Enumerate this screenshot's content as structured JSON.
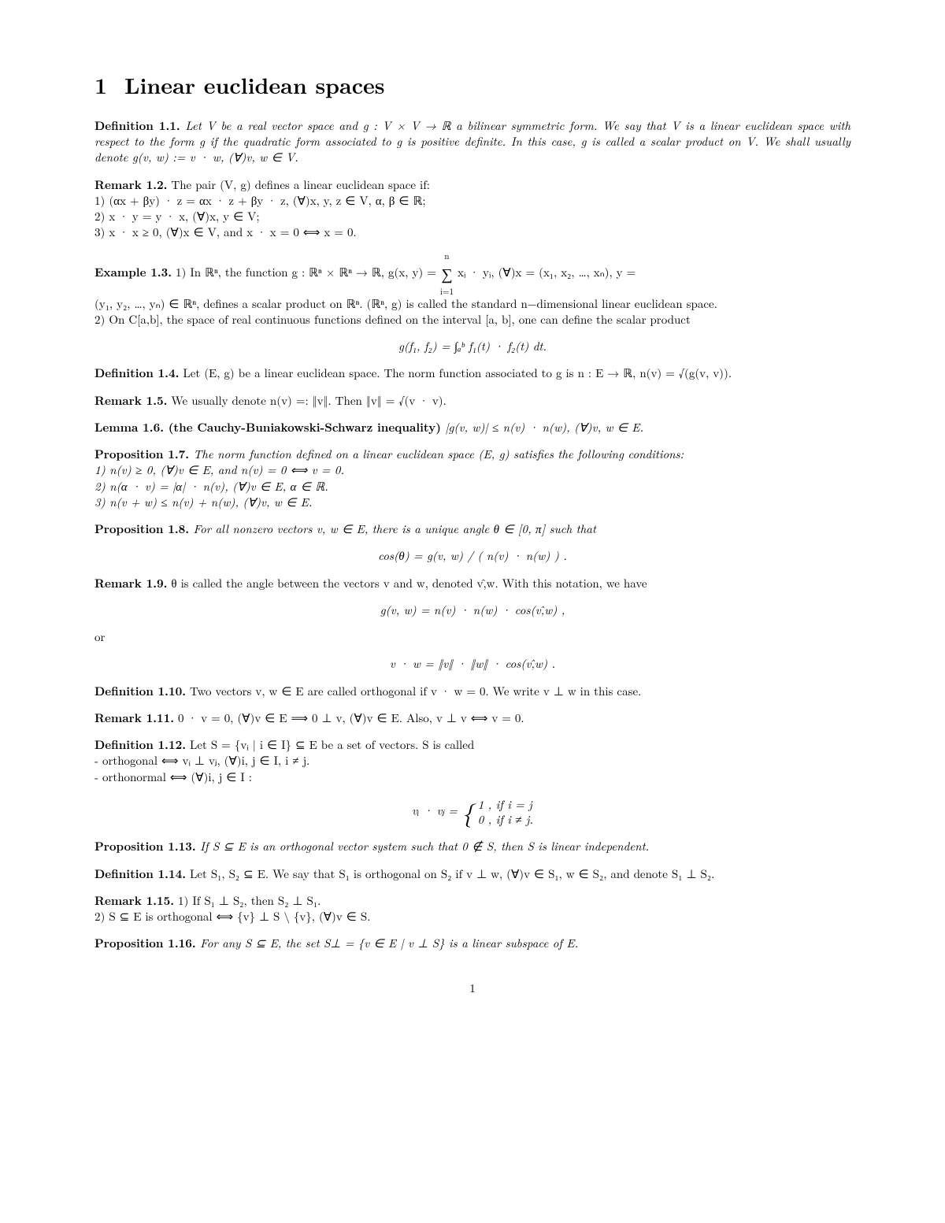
{
  "section": {
    "number": "1",
    "title": "Linear euclidean spaces"
  },
  "def1_1": {
    "label": "Definition 1.1.",
    "text": " Let V be a real vector space and g : V × V → ℝ a bilinear symmetric form. We say that V is a linear euclidean space with respect to the form g if the quadratic form associated to g is positive definite. In this case, g is called a scalar product on V. We shall usually denote g(v, w) := v · w, (∀)v, w ∈ V."
  },
  "rem1_2": {
    "label": "Remark 1.2.",
    "lead": " The pair (V, g) defines a linear euclidean space if:",
    "l1": "1) (αx + βy) · z = αx · z + βy · z, (∀)x, y, z ∈ V, α, β ∈ ℝ;",
    "l2": "2) x · y = y · x, (∀)x, y ∈ V;",
    "l3": "3) x · x ≥ 0, (∀)x ∈ V, and x · x = 0 ⟺ x = 0."
  },
  "ex1_3": {
    "label": "Example 1.3.",
    "p1a": " 1) In ℝⁿ, the function g : ℝⁿ × ℝⁿ → ℝ, g(x, y) = ",
    "sum": "∑",
    "sum_top": "n",
    "sum_bot": "i=1",
    "p1b": " xᵢ · yᵢ, (∀)x = (x₁, x₂, …, xₙ), y = ",
    "p1c": "(y₁, y₂, …, yₙ) ∈ ℝⁿ, defines a scalar product on ℝⁿ. (ℝⁿ, g) is called the standard n−dimensional linear euclidean space.",
    "p2": "2) On C[a,b], the space of real continuous functions defined on the interval [a, b], one can define the scalar product",
    "eq": "g(f₁, f₂) = ∫ₐᵇ f₁(t) · f₂(t) dt."
  },
  "def1_4": {
    "label": "Definition 1.4.",
    "text": " Let (E, g) be a linear euclidean space. The norm function associated to g is n : E → ℝ, n(v) = √(g(v, v))."
  },
  "rem1_5": {
    "label": "Remark 1.5.",
    "text": " We usually denote n(v) =: ‖v‖. Then ‖v‖ = √(v · v)."
  },
  "lem1_6": {
    "label": "Lemma 1.6.",
    "name": " (the Cauchy-Buniakowski-Schwarz inequality)",
    "text": " |g(v, w)| ≤ n(v) · n(w), (∀)v, w ∈ E."
  },
  "prop1_7": {
    "label": "Proposition 1.7.",
    "lead": " The norm function defined on a linear euclidean space (E, g) satisfies the following conditions:",
    "l1": "1) n(v) ≥ 0, (∀)v ∈ E, and n(v) = 0 ⟺ v = 0.",
    "l2": "2) n(α · v) = |α| · n(v), (∀)v ∈ E, α ∈ ℝ.",
    "l3": "3) n(v + w) ≤ n(v) + n(w), (∀)v, w ∈ E."
  },
  "prop1_8": {
    "label": "Proposition 1.8.",
    "text": " For all nonzero vectors v, w ∈ E, there is a unique angle θ ∈ [0, π] such that",
    "eq": "cos(θ) = g(v, w) / ( n(v) · n(w) ) ."
  },
  "rem1_9": {
    "label": "Remark 1.9.",
    "text": " θ is called the angle between the vectors v and w, denoted v,̂w. With this notation, we have",
    "eq1": "g(v, w) = n(v) · n(w) · cos(v,̂w) ,",
    "or": "or",
    "eq2": "v · w = ‖v‖ · ‖w‖ · cos(v,̂w) ."
  },
  "def1_10": {
    "label": "Definition 1.10.",
    "text": " Two vectors v, w ∈ E are called orthogonal if v · w = 0. We write v ⊥ w in this case."
  },
  "rem1_11": {
    "label": "Remark 1.11.",
    "text": " 0 · v = 0, (∀)v ∈ E ⟹ 0 ⊥ v, (∀)v ∈ E. Also, v ⊥ v ⟺ v = 0."
  },
  "def1_12": {
    "label": "Definition 1.12.",
    "lead": " Let S = {vᵢ | i ∈ I} ⊆ E be a set of vectors. S is called",
    "l1": "- orthogonal ⟺ vᵢ ⊥ vⱼ, (∀)i, j ∈ I, i ≠ j.",
    "l2": "- orthonormal ⟺ (∀)i, j ∈ I :",
    "eq_lhs": "vᵢ · vⱼ = ",
    "eq_case1": "1   , if i = j",
    "eq_case2": "0   , if i ≠ j."
  },
  "prop1_13": {
    "label": "Proposition 1.13.",
    "text": " If S ⊆ E is an orthogonal vector system such that 0 ∉ S, then S is linear independent."
  },
  "def1_14": {
    "label": "Definition 1.14.",
    "text": " Let S₁, S₂ ⊆ E. We say that S₁ is orthogonal on S₂ if v ⊥ w, (∀)v ∈ S₁, w ∈ S₂, and denote S₁ ⊥ S₂."
  },
  "rem1_15": {
    "label": "Remark 1.15.",
    "l1": " 1) If S₁ ⊥ S₂, then S₂ ⊥ S₁.",
    "l2": "2) S ⊆ E is orthogonal ⟺ {v} ⊥ S \\ {v}, (∀)v ∈ S."
  },
  "prop1_16": {
    "label": "Proposition 1.16.",
    "text": " For any S ⊆ E, the set S⊥ = {v ∈ E | v ⊥ S} is a linear subspace of E."
  },
  "page_number": "1"
}
